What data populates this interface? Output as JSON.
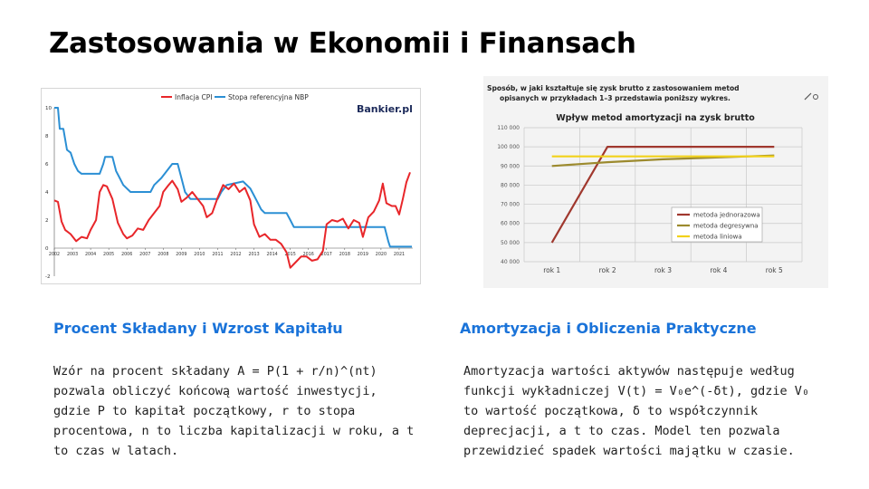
{
  "slide": {
    "title": "Zastosowania w Ekonomii i Finansach"
  },
  "left_chart": {
    "legend": [
      {
        "name": "Inflacja CPI",
        "color": "#e8262a"
      },
      {
        "name": "Stopa referencyjna NBP",
        "color": "#2b8fd4"
      }
    ],
    "logo": "Bankier.pl",
    "chart_data": {
      "type": "line",
      "x_ticks": [
        "2002",
        "2003",
        "2004",
        "2005",
        "2006",
        "2007",
        "2008",
        "2009",
        "2010",
        "2011",
        "2012",
        "2013",
        "2014",
        "2015",
        "2016",
        "2017",
        "2018",
        "2019",
        "2020",
        "2021"
      ],
      "y_ticks": [
        "10",
        "8",
        "6",
        "4",
        "2",
        "0",
        "-2"
      ],
      "ylim": [
        -2,
        10
      ],
      "series": [
        {
          "name": "Inflacja CPI",
          "color": "#e8262a",
          "points": [
            [
              2002.0,
              3.4
            ],
            [
              2002.2,
              3.3
            ],
            [
              2002.4,
              1.9
            ],
            [
              2002.6,
              1.3
            ],
            [
              2002.9,
              1.0
            ],
            [
              2003.2,
              0.5
            ],
            [
              2003.5,
              0.8
            ],
            [
              2003.8,
              0.7
            ],
            [
              2004.0,
              1.3
            ],
            [
              2004.3,
              2.0
            ],
            [
              2004.5,
              4.0
            ],
            [
              2004.7,
              4.5
            ],
            [
              2004.9,
              4.4
            ],
            [
              2005.2,
              3.5
            ],
            [
              2005.5,
              1.8
            ],
            [
              2005.8,
              1.0
            ],
            [
              2006.0,
              0.7
            ],
            [
              2006.3,
              0.9
            ],
            [
              2006.6,
              1.4
            ],
            [
              2006.9,
              1.3
            ],
            [
              2007.2,
              2.0
            ],
            [
              2007.5,
              2.5
            ],
            [
              2007.8,
              3.0
            ],
            [
              2008.0,
              4.0
            ],
            [
              2008.3,
              4.5
            ],
            [
              2008.5,
              4.8
            ],
            [
              2008.8,
              4.2
            ],
            [
              2009.0,
              3.3
            ],
            [
              2009.3,
              3.6
            ],
            [
              2009.6,
              4.0
            ],
            [
              2009.9,
              3.5
            ],
            [
              2010.2,
              3.0
            ],
            [
              2010.4,
              2.2
            ],
            [
              2010.7,
              2.5
            ],
            [
              2011.0,
              3.6
            ],
            [
              2011.3,
              4.5
            ],
            [
              2011.6,
              4.2
            ],
            [
              2011.9,
              4.6
            ],
            [
              2012.2,
              4.0
            ],
            [
              2012.5,
              4.3
            ],
            [
              2012.8,
              3.4
            ],
            [
              2013.0,
              1.7
            ],
            [
              2013.3,
              0.8
            ],
            [
              2013.6,
              1.0
            ],
            [
              2013.9,
              0.6
            ],
            [
              2014.2,
              0.6
            ],
            [
              2014.5,
              0.3
            ],
            [
              2014.8,
              -0.3
            ],
            [
              2015.0,
              -1.4
            ],
            [
              2015.3,
              -1.0
            ],
            [
              2015.6,
              -0.6
            ],
            [
              2015.9,
              -0.6
            ],
            [
              2016.2,
              -0.9
            ],
            [
              2016.5,
              -0.8
            ],
            [
              2016.8,
              -0.2
            ],
            [
              2017.0,
              1.7
            ],
            [
              2017.3,
              2.0
            ],
            [
              2017.6,
              1.9
            ],
            [
              2017.9,
              2.1
            ],
            [
              2018.2,
              1.4
            ],
            [
              2018.5,
              2.0
            ],
            [
              2018.8,
              1.8
            ],
            [
              2019.0,
              0.8
            ],
            [
              2019.3,
              2.2
            ],
            [
              2019.6,
              2.6
            ],
            [
              2019.9,
              3.4
            ],
            [
              2020.1,
              4.6
            ],
            [
              2020.3,
              3.2
            ],
            [
              2020.6,
              3.0
            ],
            [
              2020.8,
              3.0
            ],
            [
              2021.0,
              2.4
            ],
            [
              2021.2,
              3.5
            ],
            [
              2021.4,
              4.7
            ],
            [
              2021.6,
              5.4
            ]
          ]
        },
        {
          "name": "Stopa referencyjna NBP",
          "color": "#2b8fd4",
          "points": [
            [
              2002.0,
              10.0
            ],
            [
              2002.2,
              10.0
            ],
            [
              2002.3,
              8.5
            ],
            [
              2002.5,
              8.5
            ],
            [
              2002.7,
              7.0
            ],
            [
              2002.9,
              6.8
            ],
            [
              2003.1,
              6.0
            ],
            [
              2003.3,
              5.5
            ],
            [
              2003.5,
              5.3
            ],
            [
              2004.5,
              5.3
            ],
            [
              2004.7,
              6.0
            ],
            [
              2004.8,
              6.5
            ],
            [
              2005.2,
              6.5
            ],
            [
              2005.4,
              5.5
            ],
            [
              2005.6,
              5.0
            ],
            [
              2005.8,
              4.5
            ],
            [
              2006.2,
              4.0
            ],
            [
              2007.3,
              4.0
            ],
            [
              2007.5,
              4.5
            ],
            [
              2007.9,
              5.0
            ],
            [
              2008.2,
              5.5
            ],
            [
              2008.5,
              6.0
            ],
            [
              2008.8,
              6.0
            ],
            [
              2009.0,
              5.0
            ],
            [
              2009.2,
              4.0
            ],
            [
              2009.5,
              3.5
            ],
            [
              2011.0,
              3.5
            ],
            [
              2011.2,
              4.0
            ],
            [
              2011.5,
              4.5
            ],
            [
              2012.4,
              4.75
            ],
            [
              2012.8,
              4.25
            ],
            [
              2013.0,
              3.75
            ],
            [
              2013.2,
              3.25
            ],
            [
              2013.4,
              2.75
            ],
            [
              2013.6,
              2.5
            ],
            [
              2014.8,
              2.5
            ],
            [
              2015.0,
              2.0
            ],
            [
              2015.2,
              1.5
            ],
            [
              2020.2,
              1.5
            ],
            [
              2020.3,
              1.0
            ],
            [
              2020.4,
              0.5
            ],
            [
              2020.5,
              0.1
            ],
            [
              2021.7,
              0.1
            ]
          ]
        }
      ]
    }
  },
  "right_chart": {
    "caption_line1": "Sposób, w jaki kształtuje się zysk brutto z zastosowaniem metod",
    "caption_line2": "opisanych w przykładach 1–3 przedstawia poniższy wykres.",
    "icon": "edit-icon",
    "chart_data": {
      "type": "line",
      "title": "Wpływ metod amortyzacji na zysk brutto",
      "categories": [
        "rok 1",
        "rok 2",
        "rok 3",
        "rok 4",
        "rok 5"
      ],
      "y_ticks": [
        "110 000",
        "100 000",
        "90 000",
        "80 000",
        "70 000",
        "60 000",
        "50 000",
        "40 000"
      ],
      "ylim": [
        40000,
        110000
      ],
      "series": [
        {
          "name": "metoda jednorazowa",
          "color": "#a0382e",
          "values": [
            50000,
            100000,
            100000,
            100000,
            100000
          ]
        },
        {
          "name": "metoda degresywna",
          "color": "#9c8a2e",
          "values": [
            90000,
            92000,
            93500,
            94500,
            95500
          ]
        },
        {
          "name": "metoda liniowa",
          "color": "#f2d21a",
          "values": [
            95000,
            95000,
            95000,
            95000,
            95000
          ]
        }
      ]
    }
  },
  "sections": {
    "left_heading": "Procent Składany i Wzrost Kapitału",
    "left_body": "Wzór na procent składany A = P(1 + r/n)^(nt) pozwala obliczyć końcową wartość inwestycji, gdzie P to kapitał początkowy, r to stopa procentowa, n to liczba kapitalizacji w roku, a t to czas w latach.",
    "right_heading": "Amortyzacja i Obliczenia Praktyczne",
    "right_body": "Amortyzacja wartości aktywów następuje według funkcji wykładniczej V(t) = V₀e^(-δt), gdzie V₀ to wartość początkowa, δ to współczynnik deprecjacji, a t to czas. Model ten pozwala przewidzieć spadek wartości majątku w czasie."
  }
}
